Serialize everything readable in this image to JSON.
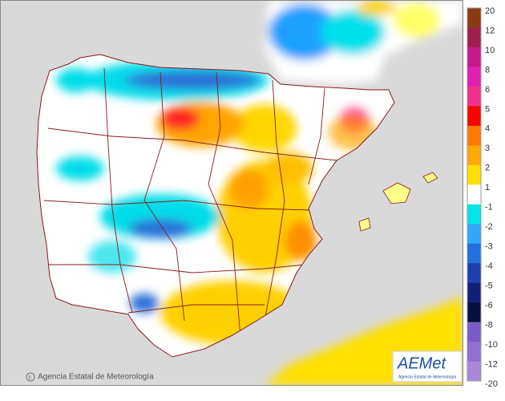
{
  "legend": {
    "labels": [
      "20",
      "12",
      "10",
      "8",
      "6",
      "5",
      "4",
      "3",
      "2",
      "1",
      "-1",
      "-2",
      "-3",
      "-4",
      "-5",
      "-6",
      "-8",
      "-10",
      "-12",
      "-20"
    ]
  },
  "credit": "Agencia Estatal de Meteorología",
  "logo": {
    "mark": "AEMet",
    "caption": "Agencia Estatal de Meteorología"
  }
}
